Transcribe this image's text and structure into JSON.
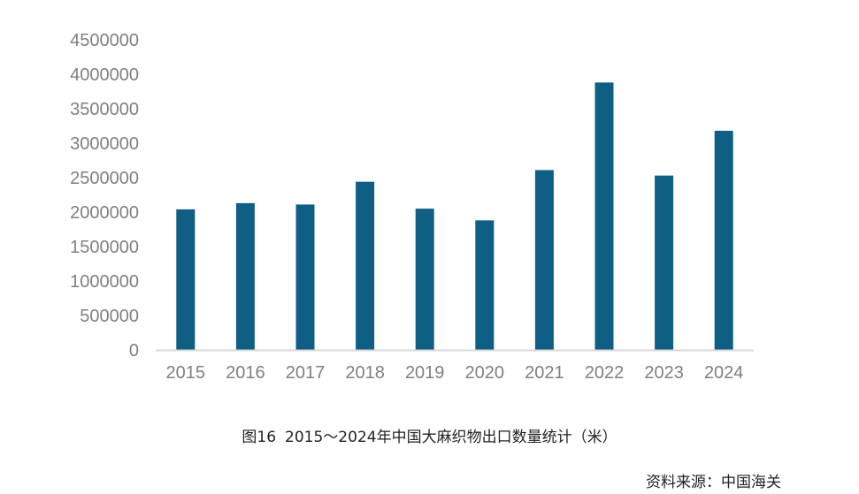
{
  "chart_data": {
    "type": "bar",
    "categories": [
      "2015",
      "2016",
      "2017",
      "2018",
      "2019",
      "2020",
      "2021",
      "2022",
      "2023",
      "2024"
    ],
    "values": [
      2040000,
      2130000,
      2110000,
      2440000,
      2050000,
      1880000,
      2610000,
      3880000,
      2530000,
      3180000
    ],
    "ylim": [
      0,
      4500000
    ],
    "yticks": [
      "0",
      "500000",
      "1000000",
      "1500000",
      "2000000",
      "2500000",
      "3000000",
      "3500000",
      "4000000",
      "4500000"
    ],
    "grid": false,
    "bar_color": "#0f5f84",
    "axis_color": "#d9d9d9",
    "tick_color": "#808080"
  },
  "caption": {
    "figure_number": "图16",
    "title": "2015～2024年中国大麻织物出口数量统计（米）"
  },
  "source": "资料来源：中国海关"
}
